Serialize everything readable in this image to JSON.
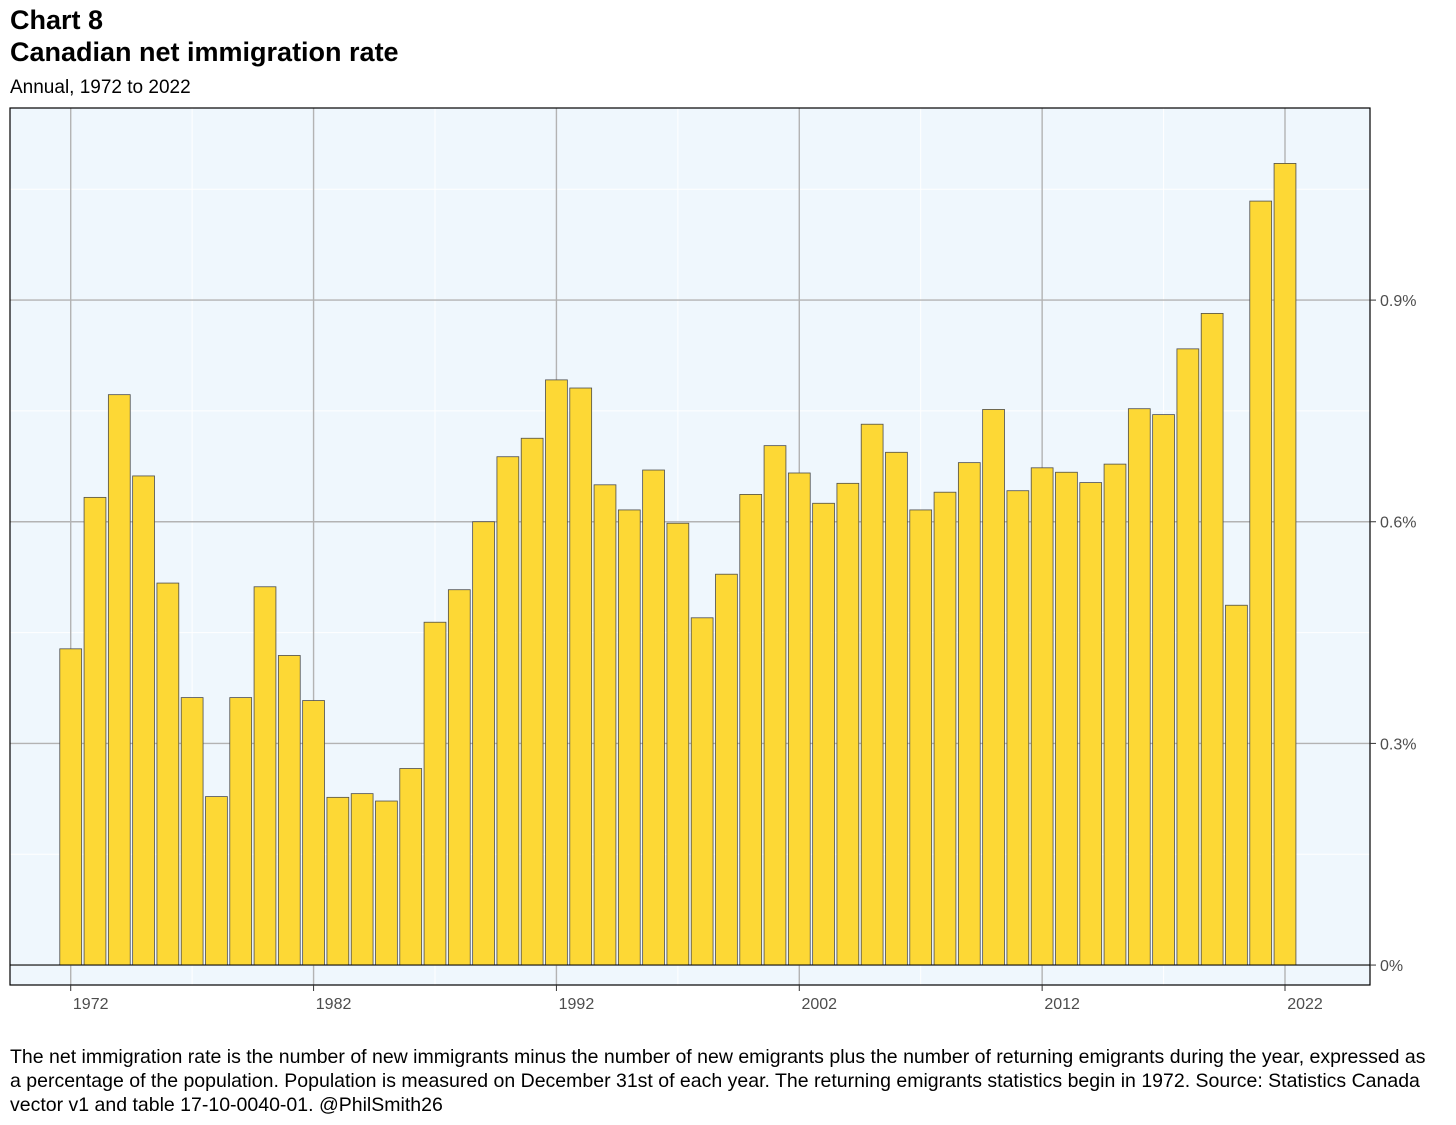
{
  "header": {
    "label": "Chart 8",
    "title": "Canadian net immigration rate",
    "subtitle": "Annual, 1972 to 2022"
  },
  "note": "The net immigration rate is the number of new immigrants minus the number of new emigrants plus the number of returning emigrants during the year, expressed as a percentage of the population. Population is measured on December 31st of each year. The returning emigrants statistics begin in 1972. Source: Statistics Canada vector v1 and table 17-10-0040-01. @PhilSmith26",
  "colors": {
    "bar_fill": "#fdd835",
    "bar_stroke": "#4d4d4d",
    "panel_bg": "#eff7fd",
    "major_grid": "#b3b3b3",
    "minor_grid": "#ffffff"
  },
  "chart_data": {
    "type": "bar",
    "title": "Canadian net immigration rate",
    "subtitle": "Annual, 1972 to 2022",
    "xlabel": "",
    "ylabel": "",
    "y_axis_side": "right",
    "grid": true,
    "xlim": [
      1969.5,
      2025.5
    ],
    "ylim": [
      -0.027,
      1.16
    ],
    "x_ticks": [
      1972,
      1982,
      1992,
      2002,
      2012,
      2022
    ],
    "x_tick_labels": [
      "1972",
      "1982",
      "1992",
      "2002",
      "2012",
      "2022"
    ],
    "y_ticks": [
      0,
      0.3,
      0.6,
      0.9
    ],
    "y_tick_labels": [
      "0%",
      "0.3%",
      "0.6%",
      "0.9%"
    ],
    "unit": "%",
    "categories": [
      1972,
      1973,
      1974,
      1975,
      1976,
      1977,
      1978,
      1979,
      1980,
      1981,
      1982,
      1983,
      1984,
      1985,
      1986,
      1987,
      1988,
      1989,
      1990,
      1991,
      1992,
      1993,
      1994,
      1995,
      1996,
      1997,
      1998,
      1999,
      2000,
      2001,
      2002,
      2003,
      2004,
      2005,
      2006,
      2007,
      2008,
      2009,
      2010,
      2011,
      2012,
      2013,
      2014,
      2015,
      2016,
      2017,
      2018,
      2019,
      2020,
      2021,
      2022
    ],
    "values": [
      0.428,
      0.633,
      0.772,
      0.662,
      0.517,
      0.362,
      0.228,
      0.362,
      0.512,
      0.419,
      0.358,
      0.227,
      0.232,
      0.222,
      0.266,
      0.464,
      0.508,
      0.6,
      0.688,
      0.713,
      0.792,
      0.781,
      0.65,
      0.616,
      0.67,
      0.598,
      0.47,
      0.529,
      0.637,
      0.703,
      0.666,
      0.625,
      0.652,
      0.732,
      0.694,
      0.616,
      0.64,
      0.68,
      0.752,
      0.642,
      0.673,
      0.667,
      0.653,
      0.678,
      0.753,
      0.745,
      0.834,
      0.882,
      0.487,
      1.034,
      1.085
    ]
  }
}
